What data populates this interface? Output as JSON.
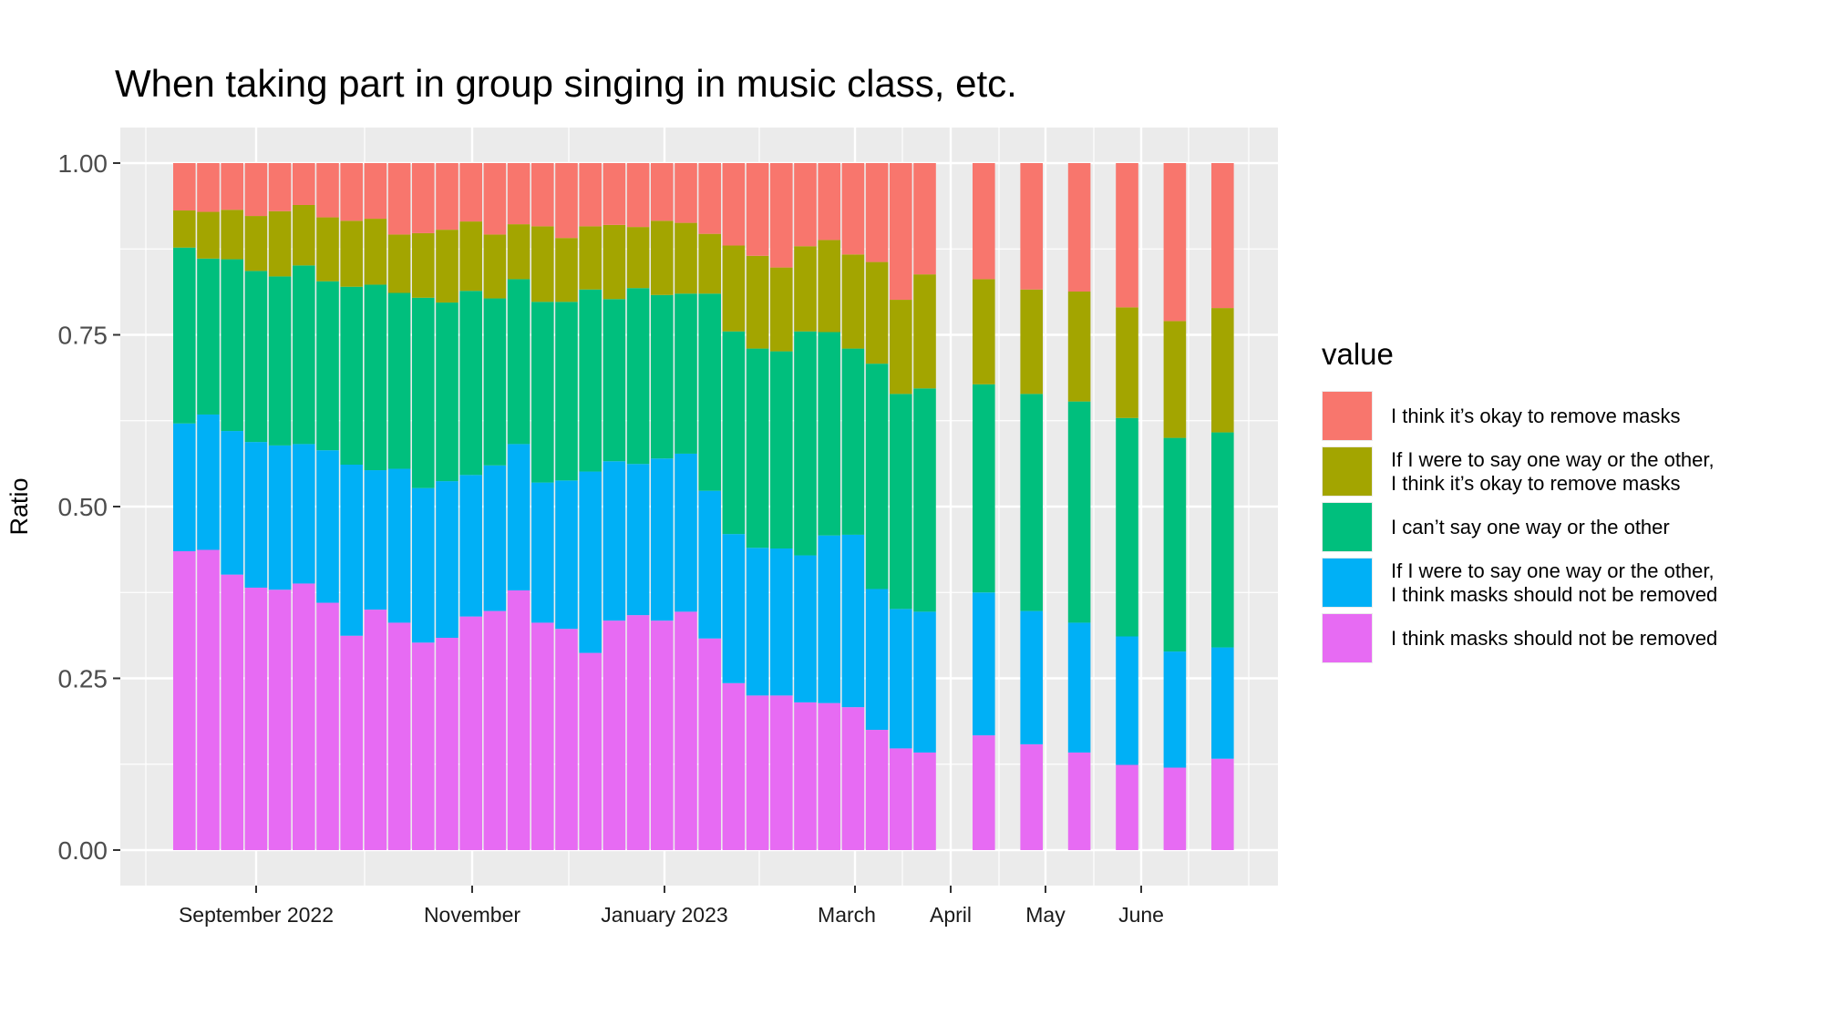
{
  "chart_data": {
    "type": "bar",
    "stacked": true,
    "title": "When taking part in group singing in music class, etc.",
    "xlabel": "",
    "ylabel": "Ratio",
    "ylim": [
      0,
      1
    ],
    "yticks": [
      "0.00",
      "0.25",
      "0.50",
      "0.75",
      "1.00"
    ],
    "xtick_labels": [
      "September 2022",
      "November",
      "January 2023",
      "March",
      "April",
      "May",
      "June"
    ],
    "grid": true,
    "legend_title": "value",
    "legend_position": "right",
    "bars_per_period": {
      "weekly_until": "April",
      "then": "weekly, wider spacing"
    },
    "series": [
      {
        "name": "I think masks should not be removed",
        "color": "#e76bf3",
        "values": [
          0.435,
          0.437,
          0.401,
          0.382,
          0.379,
          0.388,
          0.36,
          0.312,
          0.35,
          0.331,
          0.302,
          0.309,
          0.34,
          0.348,
          0.378,
          0.331,
          0.322,
          0.287,
          0.334,
          0.342,
          0.334,
          0.347,
          0.308,
          0.243,
          0.225,
          0.225,
          0.215,
          0.214,
          0.208,
          0.175,
          0.148,
          0.142,
          0.167,
          0.154,
          0.142,
          0.124,
          0.12,
          0.133
        ]
      },
      {
        "name": "If I were to say one way or the other,\nI think masks should not be removed",
        "color": "#00b0f6",
        "values": [
          0.186,
          0.197,
          0.209,
          0.212,
          0.21,
          0.203,
          0.222,
          0.249,
          0.203,
          0.224,
          0.225,
          0.228,
          0.206,
          0.212,
          0.213,
          0.204,
          0.216,
          0.264,
          0.232,
          0.22,
          0.236,
          0.23,
          0.215,
          0.217,
          0.215,
          0.214,
          0.214,
          0.244,
          0.251,
          0.205,
          0.203,
          0.205,
          0.208,
          0.194,
          0.189,
          0.187,
          0.169,
          0.162
        ]
      },
      {
        "name": "I can’t say one way or the other",
        "color": "#00bf7d",
        "values": [
          0.256,
          0.227,
          0.25,
          0.249,
          0.246,
          0.26,
          0.246,
          0.259,
          0.27,
          0.256,
          0.277,
          0.26,
          0.268,
          0.243,
          0.24,
          0.263,
          0.26,
          0.265,
          0.236,
          0.256,
          0.238,
          0.233,
          0.287,
          0.295,
          0.29,
          0.287,
          0.326,
          0.296,
          0.271,
          0.328,
          0.313,
          0.325,
          0.303,
          0.316,
          0.322,
          0.318,
          0.311,
          0.313
        ]
      },
      {
        "name": "If I were to say one way or the other,\nI think it’s okay to remove  masks",
        "color": "#a3a500",
        "values": [
          0.054,
          0.068,
          0.072,
          0.08,
          0.095,
          0.088,
          0.093,
          0.096,
          0.096,
          0.085,
          0.094,
          0.106,
          0.101,
          0.093,
          0.08,
          0.11,
          0.093,
          0.092,
          0.108,
          0.089,
          0.108,
          0.103,
          0.087,
          0.125,
          0.135,
          0.122,
          0.124,
          0.134,
          0.137,
          0.148,
          0.137,
          0.166,
          0.153,
          0.152,
          0.16,
          0.161,
          0.17,
          0.181
        ]
      },
      {
        "name": "I think it’s okay to remove masks",
        "color": "#f8766d",
        "values": [
          0.069,
          0.071,
          0.068,
          0.077,
          0.07,
          0.061,
          0.079,
          0.084,
          0.081,
          0.104,
          0.102,
          0.097,
          0.085,
          0.104,
          0.089,
          0.092,
          0.109,
          0.092,
          0.09,
          0.093,
          0.084,
          0.087,
          0.103,
          0.12,
          0.135,
          0.152,
          0.121,
          0.112,
          0.133,
          0.144,
          0.199,
          0.162,
          0.169,
          0.184,
          0.187,
          0.21,
          0.23,
          0.211
        ]
      }
    ]
  }
}
